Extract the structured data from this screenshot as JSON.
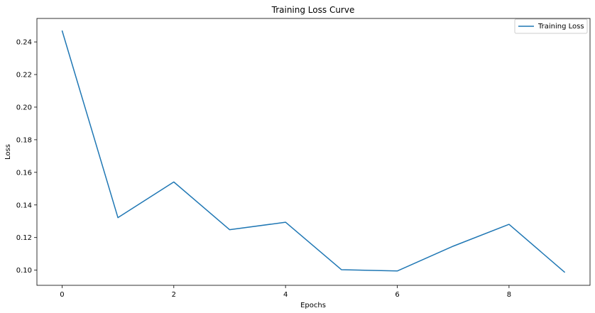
{
  "chart_data": {
    "type": "line",
    "title": "Training Loss Curve",
    "xlabel": "Epochs",
    "ylabel": "Loss",
    "xlim": [
      -0.45,
      9.45
    ],
    "ylim": [
      0.0907,
      0.2544
    ],
    "x_ticks": [
      0,
      2,
      4,
      6,
      8
    ],
    "y_ticks": [
      0.1,
      0.12,
      0.14,
      0.16,
      0.18,
      0.2,
      0.22,
      0.24
    ],
    "y_tick_labels": [
      "0.10",
      "0.12",
      "0.14",
      "0.16",
      "0.18",
      "0.20",
      "0.22",
      "0.24"
    ],
    "grid": false,
    "legend_position": "top-right",
    "series": [
      {
        "name": "Training Loss",
        "color": "#1f77b4",
        "x": [
          0,
          1,
          2,
          3,
          4,
          5,
          6,
          7,
          8,
          9
        ],
        "y": [
          0.247,
          0.1322,
          0.1541,
          0.1248,
          0.1294,
          0.1003,
          0.0995,
          0.1147,
          0.1281,
          0.0986
        ]
      }
    ]
  }
}
